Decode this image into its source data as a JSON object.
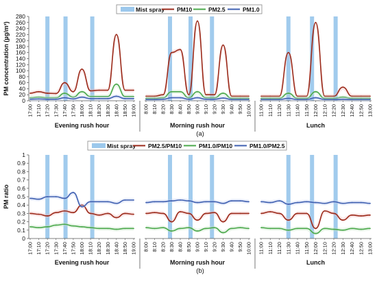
{
  "colors": {
    "mist": "#9cc8ec",
    "pm10": "#9b2a1a",
    "pm25": "#4aa84a",
    "pm10_light": "#f2b8b8",
    "pm25_light": "#bfe3bf",
    "pm1": "#3e5fb0",
    "pm1_light": "#bccaf0",
    "ratio1": "#9b2a1a",
    "ratio2": "#4aa84a",
    "ratio3": "#3e5fb0"
  },
  "chart_data": [
    {
      "type": "line",
      "title": "",
      "caption": "(a)",
      "ylabel": "PM concentration (µg/m³)",
      "ylim": [
        0,
        280
      ],
      "yticks": [
        "0",
        "20",
        "40",
        "60",
        "80",
        "100",
        "120",
        "140",
        "160",
        "180",
        "200",
        "220",
        "240",
        "260",
        "280"
      ],
      "grid": false,
      "legend": [
        "Mist spray",
        "PM10",
        "PM2.5",
        "PM1.0"
      ],
      "panels": [
        {
          "label": "Evening rush hour",
          "x": [
            "17:00",
            "17:10",
            "17:20",
            "17:30",
            "17:40",
            "17:50",
            "18:00",
            "18:10",
            "18:20",
            "18:30",
            "18:40",
            "18:50",
            "19:00"
          ],
          "spray_x": [
            2.0,
            4.1,
            7.2
          ],
          "series": [
            {
              "name": "PM10",
              "values": [
                25,
                30,
                25,
                24,
                60,
                30,
                105,
                33,
                35,
                35,
                220,
                35,
                35
              ]
            },
            {
              "name": "PM2.5",
              "values": [
                10,
                12,
                10,
                10,
                25,
                12,
                30,
                14,
                14,
                14,
                55,
                14,
                14
              ]
            },
            {
              "name": "PM1.0",
              "values": [
                5,
                6,
                5,
                5,
                10,
                6,
                12,
                7,
                7,
                7,
                15,
                7,
                7
              ]
            }
          ]
        },
        {
          "label": "Morning rush hour",
          "x": [
            "8:00",
            "8:10",
            "8:20",
            "8:30",
            "8:40",
            "8:50",
            "9:00",
            "9:10",
            "9:20",
            "9:30",
            "9:40",
            "9:50",
            "10:00"
          ],
          "spray_x": [
            2.8,
            5.2,
            7.7
          ],
          "series": [
            {
              "name": "PM10",
              "values": [
                15,
                15,
                20,
                160,
                170,
                20,
                265,
                20,
                20,
                185,
                15,
                15,
                15
              ]
            },
            {
              "name": "PM2.5",
              "values": [
                8,
                8,
                10,
                30,
                30,
                10,
                30,
                10,
                10,
                25,
                8,
                8,
                8
              ]
            },
            {
              "name": "PM1.0",
              "values": [
                4,
                4,
                5,
                10,
                10,
                5,
                10,
                5,
                5,
                9,
                4,
                4,
                4
              ]
            }
          ]
        },
        {
          "label": "Lunch",
          "x": [
            "11:00",
            "11:10",
            "11:20",
            "11:30",
            "11:40",
            "11:50",
            "12:00",
            "12:10",
            "12:20",
            "12:30",
            "12:40",
            "12:50",
            "13:00"
          ],
          "spray_x": [
            3.0,
            5.6,
            8.2
          ],
          "series": [
            {
              "name": "PM10",
              "values": [
                15,
                15,
                15,
                160,
                15,
                15,
                260,
                15,
                15,
                45,
                15,
                15,
                15
              ]
            },
            {
              "name": "PM2.5",
              "values": [
                8,
                8,
                8,
                25,
                8,
                8,
                30,
                8,
                8,
                12,
                8,
                8,
                8
              ]
            },
            {
              "name": "PM1.0",
              "values": [
                4,
                4,
                4,
                8,
                4,
                4,
                10,
                4,
                4,
                5,
                4,
                4,
                4
              ]
            }
          ]
        }
      ]
    },
    {
      "type": "line",
      "title": "",
      "caption": "(b)",
      "ylabel": "PM ratio",
      "ylim": [
        0,
        1
      ],
      "yticks": [
        "0",
        "0.1",
        "0.2",
        "0.3",
        "0.4",
        "0.5",
        "0.6",
        "0.7",
        "0.8",
        "0.9",
        "1"
      ],
      "grid": false,
      "legend": [
        "Mist spray",
        "PM2.5/PM10",
        "PM1.0/PM10",
        "PM1.0/PM2.5"
      ],
      "panels": [
        {
          "label": "Evening rush hour",
          "x": [
            "17:00",
            "17:10",
            "17:20",
            "17:30",
            "17:40",
            "17:50",
            "18:00",
            "18:10",
            "18:20",
            "18:30",
            "18:40",
            "18:50",
            "19:00"
          ],
          "spray_x": [
            2.0,
            4.1,
            7.2
          ],
          "series": [
            {
              "name": "PM2.5/PM10",
              "values": [
                0.3,
                0.29,
                0.27,
                0.31,
                0.33,
                0.31,
                0.4,
                0.3,
                0.28,
                0.3,
                0.25,
                0.3,
                0.29
              ]
            },
            {
              "name": "PM1.0/PM10",
              "values": [
                0.14,
                0.13,
                0.14,
                0.16,
                0.17,
                0.15,
                0.14,
                0.13,
                0.12,
                0.12,
                0.11,
                0.12,
                0.12
              ]
            },
            {
              "name": "PM1.0/PM2.5",
              "values": [
                0.48,
                0.47,
                0.5,
                0.5,
                0.48,
                0.55,
                0.38,
                0.44,
                0.44,
                0.44,
                0.42,
                0.46,
                0.46
              ]
            }
          ]
        },
        {
          "label": "Morning rush hour",
          "x": [
            "8:00",
            "8:10",
            "8:20",
            "8:30",
            "8:40",
            "8:50",
            "9:00",
            "9:10",
            "9:20",
            "9:30",
            "9:40",
            "9:50",
            "10:00"
          ],
          "spray_x": [
            2.8,
            5.2,
            7.7
          ],
          "series": [
            {
              "name": "PM2.5/PM10",
              "values": [
                0.3,
                0.31,
                0.3,
                0.2,
                0.32,
                0.3,
                0.22,
                0.3,
                0.31,
                0.2,
                0.3,
                0.3,
                0.3
              ]
            },
            {
              "name": "PM1.0/PM10",
              "values": [
                0.13,
                0.12,
                0.13,
                0.09,
                0.12,
                0.13,
                0.09,
                0.12,
                0.13,
                0.07,
                0.12,
                0.13,
                0.12
              ]
            },
            {
              "name": "PM1.0/PM2.5",
              "values": [
                0.43,
                0.44,
                0.44,
                0.45,
                0.46,
                0.45,
                0.43,
                0.44,
                0.44,
                0.42,
                0.45,
                0.45,
                0.44
              ]
            }
          ]
        },
        {
          "label": "Lunch",
          "x": [
            "11:00",
            "11:10",
            "11:20",
            "11:30",
            "11:40",
            "11:50",
            "12:00",
            "12:10",
            "12:20",
            "12:30",
            "12:40",
            "12:50",
            "13:00"
          ],
          "spray_x": [
            3.0,
            5.6,
            8.2
          ],
          "series": [
            {
              "name": "PM2.5/PM10",
              "values": [
                0.3,
                0.32,
                0.3,
                0.22,
                0.3,
                0.3,
                0.12,
                0.33,
                0.3,
                0.22,
                0.28,
                0.27,
                0.28
              ]
            },
            {
              "name": "PM1.0/PM10",
              "values": [
                0.13,
                0.12,
                0.12,
                0.1,
                0.12,
                0.12,
                0.06,
                0.12,
                0.11,
                0.1,
                0.12,
                0.11,
                0.12
              ]
            },
            {
              "name": "PM1.0/PM2.5",
              "values": [
                0.44,
                0.43,
                0.45,
                0.41,
                0.43,
                0.44,
                0.43,
                0.42,
                0.44,
                0.42,
                0.43,
                0.43,
                0.42
              ]
            }
          ]
        }
      ]
    }
  ]
}
